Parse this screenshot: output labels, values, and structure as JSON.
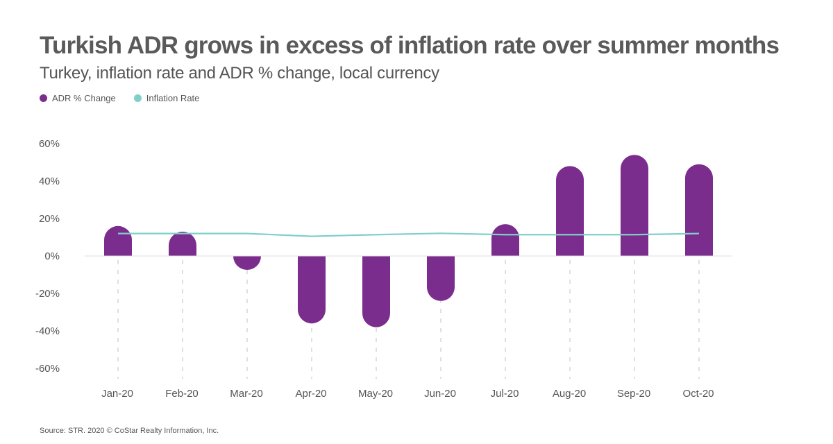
{
  "header": {
    "title": "Turkish ADR grows in excess of inflation rate over summer months",
    "subtitle": "Turkey, inflation rate and ADR % change, local currency"
  },
  "footer": {
    "source": "Source: STR. 2020 © CoStar Realty Information, Inc."
  },
  "colors": {
    "adr": "#7b2d8e",
    "inflation": "#7fcfca",
    "axis_text": "#555555",
    "grid": "#cccccc"
  },
  "chart_data": {
    "type": "bar",
    "title": "Turkish ADR grows in excess of inflation rate over summer months",
    "subtitle": "Turkey, inflation rate and ADR % change, local currency",
    "categories": [
      "Jan-20",
      "Feb-20",
      "Mar-20",
      "Apr-20",
      "May-20",
      "Jun-20",
      "Jul-20",
      "Aug-20",
      "Sep-20",
      "Oct-20"
    ],
    "series": [
      {
        "name": "ADR % Change",
        "type": "bar",
        "values": [
          16,
          13,
          -6,
          -36,
          -38,
          -24,
          17,
          48,
          54,
          49
        ]
      },
      {
        "name": "Inflation Rate",
        "type": "line",
        "values": [
          12,
          12,
          12,
          10.5,
          11.4,
          12.1,
          11.4,
          11.4,
          11.4,
          12
        ]
      }
    ],
    "yticks": [
      "60%",
      "40%",
      "20%",
      "0%",
      "-20%",
      "-40%",
      "-60%"
    ],
    "ylim": [
      -60,
      60
    ],
    "xlabel": "",
    "ylabel": "",
    "legend_position": "top-left"
  }
}
